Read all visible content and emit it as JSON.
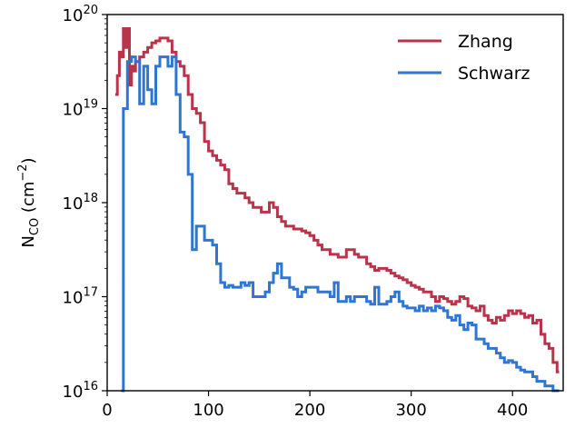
{
  "chart_data": {
    "type": "line",
    "step": true,
    "ylabel": {
      "main": "N",
      "sub": "CO",
      "rest": " (cm",
      "sup": "−2",
      "close": ")"
    },
    "xlim": [
      0,
      450
    ],
    "ylim_log10": [
      16,
      20
    ],
    "yscale": "log",
    "x_ticks": [
      0,
      100,
      200,
      300,
      400
    ],
    "y_ticks": [
      {
        "base": "10",
        "exp": "16"
      },
      {
        "base": "10",
        "exp": "17"
      },
      {
        "base": "10",
        "exp": "18"
      },
      {
        "base": "10",
        "exp": "19"
      },
      {
        "base": "10",
        "exp": "20"
      }
    ],
    "grid": false,
    "legend_position": "top-right",
    "series": [
      {
        "name": "Zhang",
        "color": "#b9344b",
        "log10_values": [
          [
            8,
            19.15
          ],
          [
            10,
            19.35
          ],
          [
            12,
            19.6
          ],
          [
            14,
            19.55
          ],
          [
            16,
            19.85
          ],
          [
            18,
            19.65
          ],
          [
            20,
            19.85
          ],
          [
            22,
            19.25
          ],
          [
            24,
            19.45
          ],
          [
            26,
            19.4
          ],
          [
            28,
            19.5
          ],
          [
            32,
            19.55
          ],
          [
            36,
            19.6
          ],
          [
            40,
            19.65
          ],
          [
            44,
            19.7
          ],
          [
            48,
            19.72
          ],
          [
            52,
            19.75
          ],
          [
            56,
            19.75
          ],
          [
            60,
            19.72
          ],
          [
            64,
            19.6
          ],
          [
            68,
            19.5
          ],
          [
            72,
            19.45
          ],
          [
            76,
            19.35
          ],
          [
            80,
            19.15
          ],
          [
            84,
            19.0
          ],
          [
            88,
            18.95
          ],
          [
            92,
            18.85
          ],
          [
            96,
            18.65
          ],
          [
            100,
            18.55
          ],
          [
            104,
            18.5
          ],
          [
            108,
            18.45
          ],
          [
            112,
            18.4
          ],
          [
            116,
            18.35
          ],
          [
            120,
            18.2
          ],
          [
            124,
            18.15
          ],
          [
            128,
            18.1
          ],
          [
            132,
            18.1
          ],
          [
            136,
            18.05
          ],
          [
            140,
            18.0
          ],
          [
            144,
            17.95
          ],
          [
            148,
            17.95
          ],
          [
            152,
            17.9
          ],
          [
            156,
            17.9
          ],
          [
            160,
            18.0
          ],
          [
            164,
            17.95
          ],
          [
            168,
            17.85
          ],
          [
            172,
            17.8
          ],
          [
            176,
            17.75
          ],
          [
            180,
            17.75
          ],
          [
            184,
            17.72
          ],
          [
            188,
            17.72
          ],
          [
            192,
            17.7
          ],
          [
            196,
            17.68
          ],
          [
            200,
            17.65
          ],
          [
            204,
            17.6
          ],
          [
            208,
            17.55
          ],
          [
            212,
            17.5
          ],
          [
            216,
            17.5
          ],
          [
            220,
            17.45
          ],
          [
            224,
            17.45
          ],
          [
            228,
            17.42
          ],
          [
            232,
            17.42
          ],
          [
            236,
            17.5
          ],
          [
            240,
            17.5
          ],
          [
            244,
            17.45
          ],
          [
            248,
            17.42
          ],
          [
            252,
            17.42
          ],
          [
            256,
            17.35
          ],
          [
            260,
            17.32
          ],
          [
            264,
            17.28
          ],
          [
            268,
            17.3
          ],
          [
            272,
            17.3
          ],
          [
            276,
            17.28
          ],
          [
            280,
            17.25
          ],
          [
            284,
            17.22
          ],
          [
            288,
            17.2
          ],
          [
            292,
            17.18
          ],
          [
            296,
            17.15
          ],
          [
            300,
            17.12
          ],
          [
            304,
            17.1
          ],
          [
            308,
            17.08
          ],
          [
            312,
            17.05
          ],
          [
            316,
            17.05
          ],
          [
            320,
            17.0
          ],
          [
            324,
            16.95
          ],
          [
            328,
            17.0
          ],
          [
            332,
            16.98
          ],
          [
            336,
            16.95
          ],
          [
            340,
            16.92
          ],
          [
            344,
            16.95
          ],
          [
            348,
            17.0
          ],
          [
            352,
            16.98
          ],
          [
            356,
            16.9
          ],
          [
            360,
            16.88
          ],
          [
            364,
            16.85
          ],
          [
            368,
            16.9
          ],
          [
            372,
            16.8
          ],
          [
            376,
            16.75
          ],
          [
            380,
            16.72
          ],
          [
            384,
            16.78
          ],
          [
            388,
            16.75
          ],
          [
            392,
            16.8
          ],
          [
            396,
            16.85
          ],
          [
            400,
            16.82
          ],
          [
            404,
            16.85
          ],
          [
            408,
            16.82
          ],
          [
            412,
            16.78
          ],
          [
            416,
            16.8
          ],
          [
            420,
            16.72
          ],
          [
            424,
            16.75
          ],
          [
            428,
            16.6
          ],
          [
            432,
            16.5
          ],
          [
            436,
            16.45
          ],
          [
            440,
            16.3
          ],
          [
            444,
            16.2
          ],
          [
            446,
            16.2
          ]
        ]
      },
      {
        "name": "Schwarz",
        "color": "#2f75d2",
        "log10_values": [
          [
            14,
            16.0
          ],
          [
            16,
            19.0
          ],
          [
            20,
            19.5
          ],
          [
            24,
            19.55
          ],
          [
            28,
            19.5
          ],
          [
            32,
            19.05
          ],
          [
            36,
            19.45
          ],
          [
            40,
            19.2
          ],
          [
            44,
            19.05
          ],
          [
            48,
            19.45
          ],
          [
            52,
            19.55
          ],
          [
            56,
            19.55
          ],
          [
            60,
            19.45
          ],
          [
            64,
            19.55
          ],
          [
            68,
            19.15
          ],
          [
            72,
            18.75
          ],
          [
            76,
            18.7
          ],
          [
            80,
            18.3
          ],
          [
            84,
            17.5
          ],
          [
            88,
            17.75
          ],
          [
            92,
            17.75
          ],
          [
            96,
            17.6
          ],
          [
            100,
            17.6
          ],
          [
            104,
            17.55
          ],
          [
            108,
            17.35
          ],
          [
            112,
            17.15
          ],
          [
            116,
            17.1
          ],
          [
            120,
            17.12
          ],
          [
            124,
            17.1
          ],
          [
            128,
            17.1
          ],
          [
            132,
            17.15
          ],
          [
            136,
            17.12
          ],
          [
            140,
            17.15
          ],
          [
            144,
            17.0
          ],
          [
            148,
            17.0
          ],
          [
            152,
            17.0
          ],
          [
            156,
            17.05
          ],
          [
            160,
            17.15
          ],
          [
            164,
            17.25
          ],
          [
            168,
            17.35
          ],
          [
            172,
            17.2
          ],
          [
            176,
            17.2
          ],
          [
            180,
            17.1
          ],
          [
            184,
            17.08
          ],
          [
            188,
            17.0
          ],
          [
            192,
            17.05
          ],
          [
            196,
            17.1
          ],
          [
            200,
            17.1
          ],
          [
            204,
            17.1
          ],
          [
            208,
            17.05
          ],
          [
            212,
            17.05
          ],
          [
            216,
            17.05
          ],
          [
            220,
            17.0
          ],
          [
            224,
            17.15
          ],
          [
            228,
            16.95
          ],
          [
            232,
            16.95
          ],
          [
            236,
            17.0
          ],
          [
            240,
            16.95
          ],
          [
            244,
            17.0
          ],
          [
            248,
            17.0
          ],
          [
            252,
            17.0
          ],
          [
            256,
            16.95
          ],
          [
            260,
            16.92
          ],
          [
            264,
            17.1
          ],
          [
            268,
            16.92
          ],
          [
            272,
            16.92
          ],
          [
            276,
            16.95
          ],
          [
            280,
            17.0
          ],
          [
            284,
            17.05
          ],
          [
            288,
            16.95
          ],
          [
            292,
            16.9
          ],
          [
            296,
            16.88
          ],
          [
            300,
            16.88
          ],
          [
            304,
            16.85
          ],
          [
            308,
            16.9
          ],
          [
            312,
            16.85
          ],
          [
            316,
            16.88
          ],
          [
            320,
            16.85
          ],
          [
            324,
            16.9
          ],
          [
            328,
            16.88
          ],
          [
            332,
            16.85
          ],
          [
            336,
            16.78
          ],
          [
            340,
            16.75
          ],
          [
            344,
            16.8
          ],
          [
            348,
            16.7
          ],
          [
            352,
            16.65
          ],
          [
            356,
            16.72
          ],
          [
            360,
            16.7
          ],
          [
            364,
            16.55
          ],
          [
            368,
            16.55
          ],
          [
            372,
            16.5
          ],
          [
            376,
            16.45
          ],
          [
            380,
            16.45
          ],
          [
            384,
            16.4
          ],
          [
            388,
            16.35
          ],
          [
            392,
            16.3
          ],
          [
            396,
            16.32
          ],
          [
            400,
            16.3
          ],
          [
            404,
            16.25
          ],
          [
            408,
            16.22
          ],
          [
            412,
            16.2
          ],
          [
            416,
            16.2
          ],
          [
            420,
            16.15
          ],
          [
            424,
            16.1
          ],
          [
            428,
            16.1
          ],
          [
            432,
            16.05
          ],
          [
            436,
            16.05
          ],
          [
            440,
            16.0
          ],
          [
            444,
            16.0
          ],
          [
            446,
            16.0
          ]
        ]
      }
    ]
  }
}
